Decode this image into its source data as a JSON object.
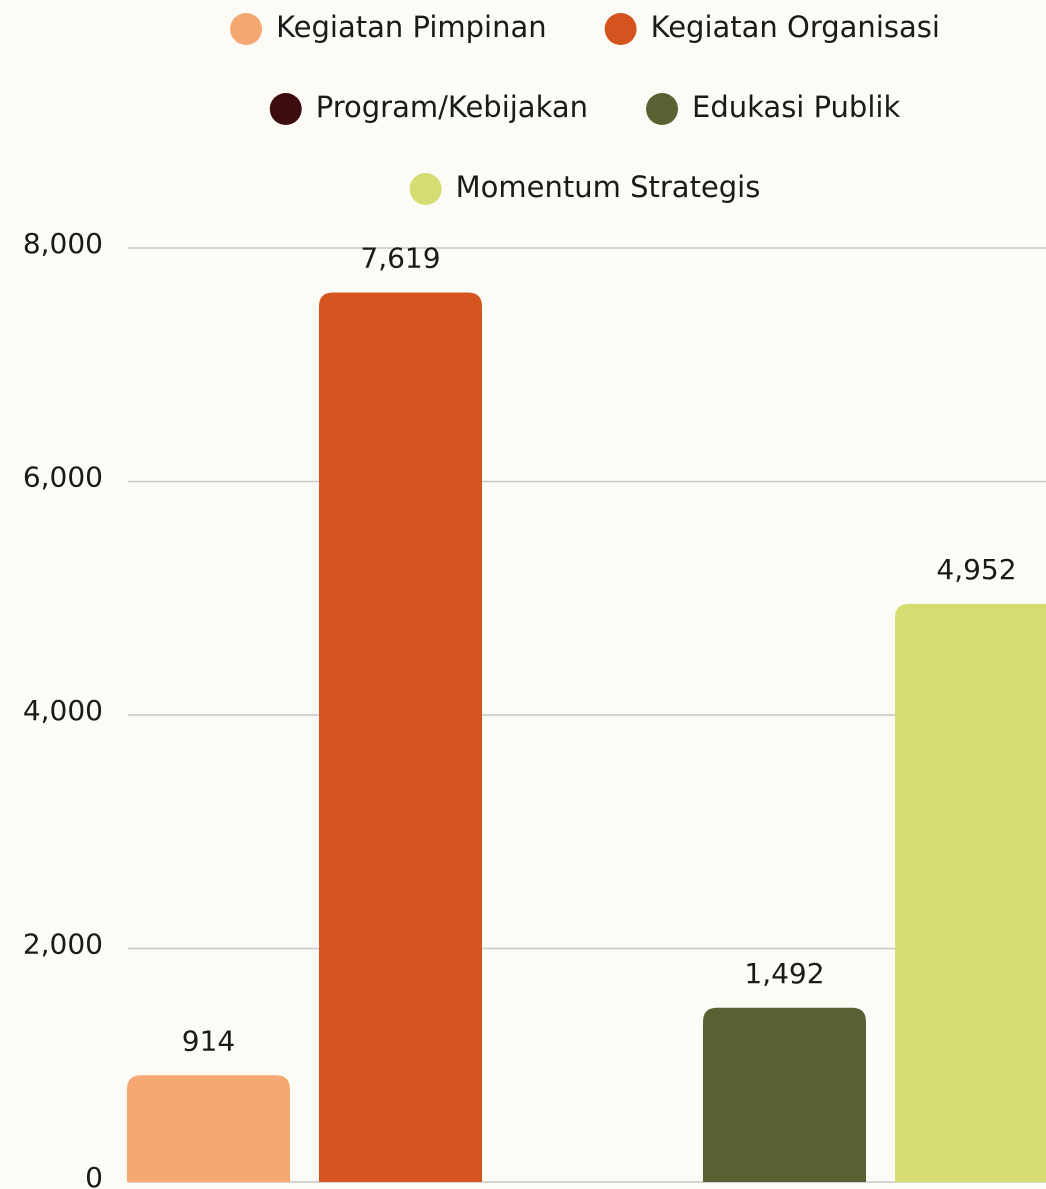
{
  "chart_data": {
    "type": "bar",
    "series": [
      {
        "name": "Kegiatan Pimpinan",
        "color": "#f6a872",
        "values": [
          914
        ],
        "value_labels": [
          "914"
        ]
      },
      {
        "name": "Kegiatan Organisasi",
        "color": "#d3541e",
        "values": [
          7619
        ],
        "value_labels": [
          "7,619"
        ]
      },
      {
        "name": "Program/Kebijakan",
        "color": "#3d0c0e",
        "values": [
          null
        ],
        "value_labels": [
          null
        ]
      },
      {
        "name": "Edukasi Publik",
        "color": "#5b6033",
        "values": [
          1492
        ],
        "value_labels": [
          "1,492"
        ]
      },
      {
        "name": "Momentum Strategis",
        "color": "#d5dd72",
        "values": [
          4952
        ],
        "value_labels": [
          "4,952"
        ]
      }
    ],
    "ylim": [
      0,
      8000
    ],
    "yticks": [
      0,
      {
        "value": 2000,
        "label": "2,000"
      },
      {
        "value": 4000,
        "label": "4,000"
      },
      {
        "value": 6000,
        "label": "6,000"
      },
      {
        "value": 8000,
        "label": "8,000"
      }
    ],
    "grid": true,
    "legend": "top"
  }
}
